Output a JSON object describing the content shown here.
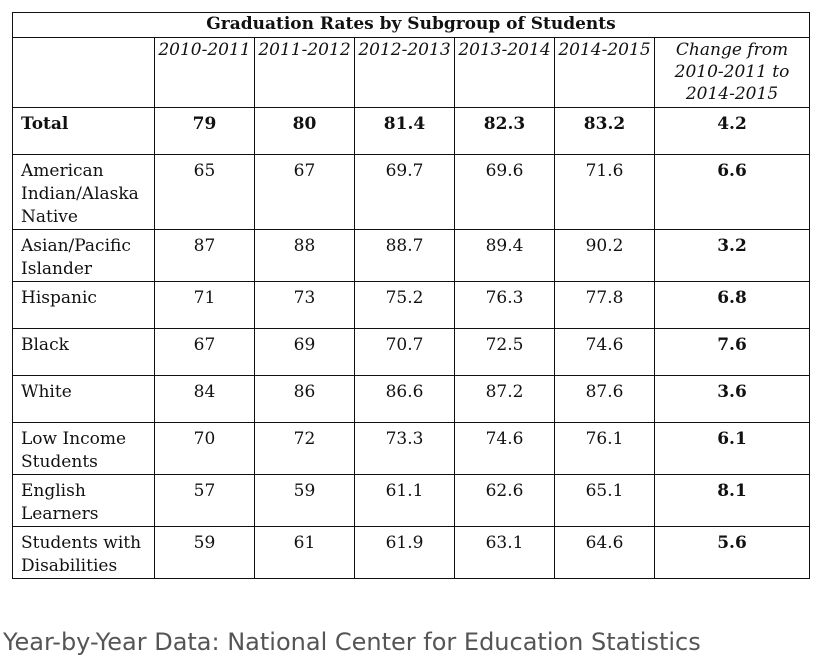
{
  "chart_data": {
    "type": "table",
    "title": "Graduation Rates by Subgroup of Students",
    "columns": [
      "2010-2011",
      "2011-2012",
      "2012-2013",
      "2013-2014",
      "2014-2015",
      "Change from 2010-2011 to 2014-2015"
    ],
    "rows": [
      {
        "label": "Total",
        "values": [
          "79",
          "80",
          "81.4",
          "82.3",
          "83.2"
        ],
        "change": "4.2",
        "bold": true
      },
      {
        "label": "American Indian/Alaska Native",
        "values": [
          "65",
          "67",
          "69.7",
          "69.6",
          "71.6"
        ],
        "change": "6.6",
        "bold": false
      },
      {
        "label": "Asian/Pacific Islander",
        "values": [
          "87",
          "88",
          "88.7",
          "89.4",
          "90.2"
        ],
        "change": "3.2",
        "bold": false
      },
      {
        "label": "Hispanic",
        "values": [
          "71",
          "73",
          "75.2",
          "76.3",
          "77.8"
        ],
        "change": "6.8",
        "bold": false
      },
      {
        "label": "Black",
        "values": [
          "67",
          "69",
          "70.7",
          "72.5",
          "74.6"
        ],
        "change": "7.6",
        "bold": false
      },
      {
        "label": "White",
        "values": [
          "84",
          "86",
          "86.6",
          "87.2",
          "87.6"
        ],
        "change": "3.6",
        "bold": false
      },
      {
        "label": "Low Income Students",
        "values": [
          "70",
          "72",
          "73.3",
          "74.6",
          "76.1"
        ],
        "change": "6.1",
        "bold": false
      },
      {
        "label": "English Learners",
        "values": [
          "57",
          "59",
          "61.1",
          "62.6",
          "65.1"
        ],
        "change": "8.1",
        "bold": false
      },
      {
        "label": "Students with Disabilities",
        "values": [
          "59",
          "61",
          "61.9",
          "63.1",
          "64.6"
        ],
        "change": "5.6",
        "bold": false
      }
    ]
  },
  "caption": "Year-by-Year Data: National Center for Education Statistics"
}
